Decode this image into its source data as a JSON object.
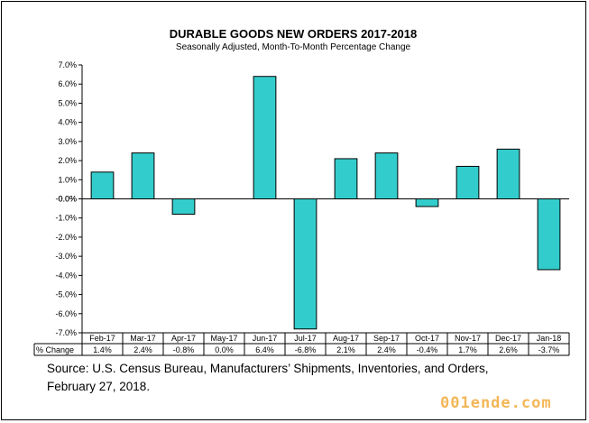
{
  "chart_data": {
    "type": "bar",
    "title": "DURABLE GOODS NEW ORDERS 2017-2018",
    "subtitle": "Seasonally Adjusted,  Month-To-Month  Percentage Change",
    "categories": [
      "Feb-17",
      "Mar-17",
      "Apr-17",
      "May-17",
      "Jun-17",
      "Jul-17",
      "Aug-17",
      "Sep-17",
      "Oct-17",
      "Nov-17",
      "Dec-17",
      "Jan-18"
    ],
    "values": [
      1.4,
      2.4,
      -0.8,
      0.0,
      6.4,
      -6.8,
      2.1,
      2.4,
      -0.4,
      1.7,
      2.6,
      -3.7
    ],
    "value_labels": [
      "1.4%",
      "2.4%",
      "-0.8%",
      "0.0%",
      "6.4%",
      "-6.8%",
      "2.1%",
      "2.4%",
      "-0.4%",
      "1.7%",
      "2.6%",
      "-3.7%"
    ],
    "ylim": [
      -7.0,
      7.0
    ],
    "ytick_step": 1.0,
    "ytick_labels": [
      "7.0%",
      "6.0%",
      "5.0%",
      "4.0%",
      "3.0%",
      "2.0%",
      "1.0%",
      "0.0%",
      "-0.0%",
      "-1.0%",
      "-2.0%",
      "-3.0%",
      "-4.0%",
      "-5.0%",
      "-6.0%",
      "-7.0%"
    ],
    "data_table_label": "% Change",
    "xlabel": "",
    "ylabel": "",
    "grid": false,
    "bar_color": "#33cccc"
  },
  "source": {
    "line1": "Source: U.S. Census Bureau, Manufacturers’ Shipments, Inventories, and Orders,",
    "line2": "February 27,  2018."
  },
  "watermark": "001ende.com"
}
